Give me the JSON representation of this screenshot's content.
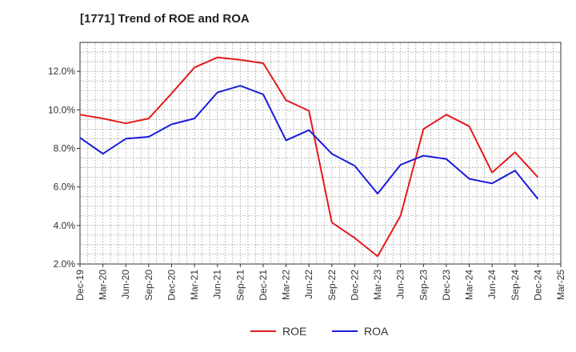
{
  "chart_data": {
    "type": "line",
    "title": "[1771]  Trend of ROE and ROA",
    "xlabel": "",
    "ylabel": "",
    "categories": [
      "Dec-19",
      "Mar-20",
      "Jun-20",
      "Sep-20",
      "Dec-20",
      "Mar-21",
      "Jun-21",
      "Sep-21",
      "Dec-21",
      "Mar-22",
      "Jun-22",
      "Sep-22",
      "Dec-22",
      "Mar-23",
      "Jun-23",
      "Sep-23",
      "Dec-23",
      "Mar-24",
      "Jun-24",
      "Sep-24",
      "Dec-24",
      "Mar-25"
    ],
    "ylim": [
      2.0,
      13.5
    ],
    "yticks": [
      2.0,
      4.0,
      6.0,
      8.0,
      10.0,
      12.0
    ],
    "ytick_labels": [
      "2.0%",
      "4.0%",
      "6.0%",
      "8.0%",
      "10.0%",
      "12.0%"
    ],
    "grid": true,
    "legend_position": "bottom-center",
    "series": [
      {
        "name": "ROE",
        "color": "#e41a1c",
        "values": [
          9.75,
          9.55,
          9.3,
          9.55,
          10.85,
          12.2,
          12.72,
          12.6,
          12.42,
          10.5,
          9.95,
          4.15,
          3.35,
          2.4,
          4.5,
          9.0,
          9.75,
          9.15,
          6.75,
          7.8,
          6.5,
          null
        ]
      },
      {
        "name": "ROA",
        "color": "#1a1adc",
        "values": [
          8.55,
          7.72,
          8.5,
          8.6,
          9.25,
          9.55,
          10.9,
          11.25,
          10.8,
          8.42,
          8.95,
          7.72,
          7.1,
          5.65,
          7.15,
          7.62,
          7.45,
          6.42,
          6.18,
          6.85,
          5.38,
          null
        ]
      }
    ]
  }
}
